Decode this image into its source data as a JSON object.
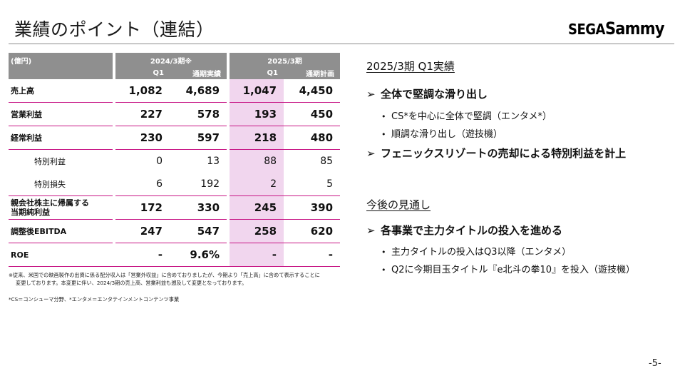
{
  "header": {
    "title": "業績のポイント（連結）",
    "logo_text": "SEGASammy",
    "logo_part1": "SEGA",
    "logo_part2": "Sammy"
  },
  "table": {
    "unit_label": "(億円)",
    "period_headers": [
      "2024/3期※",
      "2025/3期"
    ],
    "sub_headers": [
      "Q1",
      "通期実績",
      "Q1",
      "通期計画"
    ],
    "highlight_color": "#f1d6ee",
    "rule_color": "#c71585",
    "rows": [
      {
        "label": "売上高",
        "values": [
          "1,082",
          "4,689",
          "1,047",
          "4,450"
        ]
      },
      {
        "label": "営業利益",
        "values": [
          "227",
          "578",
          "193",
          "450"
        ]
      },
      {
        "label": "経常利益",
        "values": [
          "230",
          "597",
          "218",
          "480"
        ]
      },
      {
        "label": "特別利益",
        "values": [
          "0",
          "13",
          "88",
          "85"
        ]
      },
      {
        "label": "特別損失",
        "values": [
          "6",
          "192",
          "2",
          "5"
        ]
      },
      {
        "label_line1": "親会社株主に帰属する",
        "label_line2": "当期純利益",
        "values": [
          "172",
          "330",
          "245",
          "390"
        ]
      },
      {
        "label": "調整後EBITDA",
        "values": [
          "247",
          "547",
          "258",
          "620"
        ]
      },
      {
        "label": "ROE",
        "values": [
          "-",
          "9.6%",
          "-",
          "-"
        ]
      }
    ]
  },
  "footnotes": {
    "note1_line1": "※従来、米国での映画製作の出資に係る配分収入は「営業外収益」に含めておりましたが、今期より「売上高」に含めて表示することに",
    "note1_line2": "変更しております。本変更に伴い、2024/3期の売上高、営業利益も遡及して変更となっております。",
    "note2": "*CS＝コンシューマ分野、*エンタメ＝エンタテインメントコンテンツ事業"
  },
  "right": {
    "section1_title": "2025/3期 Q1実績",
    "section1_points": [
      {
        "text": "全体で堅調な滑り出し",
        "subs": [
          "CS*を中心に全体で堅調（エンタメ*）",
          "順調な滑り出し（遊技機）"
        ]
      },
      {
        "text": "フェニックスリゾートの売却による特別利益を計上",
        "subs": []
      }
    ],
    "section2_title": "今後の見通し",
    "section2_points": [
      {
        "text": "各事業で主力タイトルの投入を進める",
        "subs": [
          "主力タイトルの投入はQ3以降（エンタメ）",
          "Q2に今期目玉タイトル『e北斗の拳10』を投入（遊技機）"
        ]
      }
    ],
    "arrow_glyph": "➢",
    "bullet_glyph": "•"
  },
  "page_number": "-5-"
}
